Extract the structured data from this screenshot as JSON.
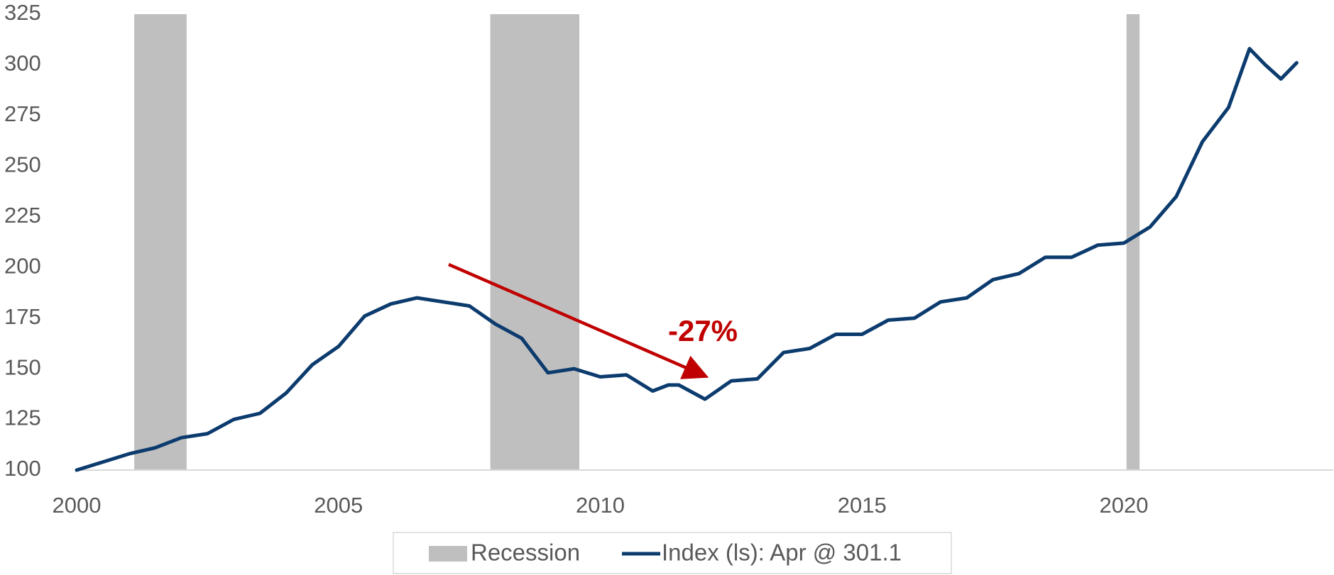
{
  "chart_data": {
    "type": "line",
    "annotation": "-27%",
    "annotation_color": "#c00000",
    "xlim": [
      2000,
      2024
    ],
    "xticks": [
      2000,
      2005,
      2010,
      2015,
      2020
    ],
    "ylim": [
      100,
      325
    ],
    "yticks": [
      100,
      125,
      150,
      175,
      200,
      225,
      250,
      275,
      300,
      325
    ],
    "grid": false,
    "legend": "bottom",
    "recessions": {
      "name": "Recession",
      "color": "#bfbfbf",
      "ranges": [
        [
          2001.1,
          2002.1
        ],
        [
          2007.9,
          2009.6
        ],
        [
          2020.05,
          2020.3
        ]
      ]
    },
    "series": [
      {
        "name": "Index (ls): Apr @ 301.1",
        "color": "#0c3b6e",
        "x": [
          2000,
          2000.5,
          2001,
          2001.5,
          2002,
          2002.5,
          2003,
          2003.5,
          2004,
          2004.5,
          2005,
          2005.5,
          2006,
          2006.5,
          2007,
          2007.5,
          2008,
          2008.5,
          2009,
          2009.5,
          2010,
          2010.5,
          2011,
          2011.3,
          2011.5,
          2012,
          2012.5,
          2013,
          2013.5,
          2014,
          2014.5,
          2015,
          2015.5,
          2016,
          2016.5,
          2017,
          2017.5,
          2018,
          2018.5,
          2019,
          2019.5,
          2020,
          2020.5,
          2021,
          2021.5,
          2022,
          2022.4,
          2022.7,
          2023,
          2023.3
        ],
        "values": [
          100,
          104,
          108,
          111,
          116,
          118,
          125,
          128,
          138,
          152,
          161,
          176,
          182,
          185,
          183,
          181,
          172,
          165,
          148,
          150,
          146,
          147,
          139,
          142,
          142,
          135,
          144,
          145,
          158,
          160,
          167,
          167,
          174,
          175,
          183,
          185,
          194,
          197,
          205,
          205,
          211,
          212,
          220,
          235,
          262,
          279,
          308,
          300,
          293,
          301
        ]
      }
    ]
  }
}
